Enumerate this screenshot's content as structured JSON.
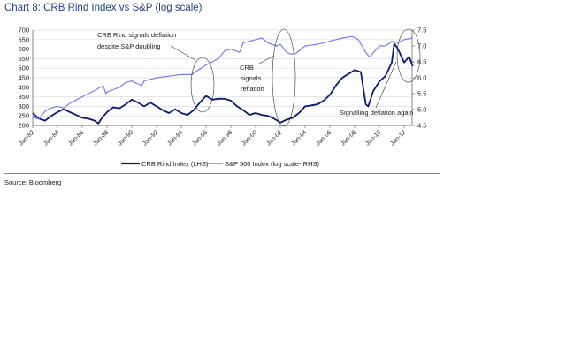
{
  "chart_data": {
    "type": "line",
    "title": "Chart 8: CRB Rind Index vs S&P (log scale)",
    "source": "Source: Bloomberg",
    "x_ticks": [
      "Jan-82",
      "Jan-84",
      "Jan-86",
      "Jan-88",
      "Jan-90",
      "Jan-92",
      "Jan-94",
      "Jan-96",
      "Jan-98",
      "Jan-00",
      "Jan-02",
      "Jan-04",
      "Jan-06",
      "Jan-08",
      "Jan-10",
      "Jan-12"
    ],
    "x_range": [
      1982,
      2012.7
    ],
    "y_left": {
      "range": [
        200,
        700
      ],
      "ticks": [
        200,
        250,
        300,
        350,
        400,
        450,
        500,
        550,
        600,
        650,
        700
      ]
    },
    "y_right": {
      "range": [
        4.5,
        7.5
      ],
      "ticks": [
        "4.5",
        "5.0",
        "5.5",
        "6.0",
        "6.5",
        "7.0",
        "7.5"
      ]
    },
    "grid": true,
    "legend_position": "bottom",
    "series": [
      {
        "name": "CRB Rind Index  (LHS)",
        "axis": "left",
        "color": "#0d1a78",
        "x": [
          1982,
          1982.5,
          1983,
          1983.5,
          1984,
          1984.5,
          1985,
          1985.5,
          1986,
          1986.5,
          1987,
          1987.3,
          1987.6,
          1988,
          1988.5,
          1989,
          1989.5,
          1990,
          1990.5,
          1991,
          1991.5,
          1992,
          1992.5,
          1993,
          1993.5,
          1994,
          1994.5,
          1995,
          1995.5,
          1996,
          1996.5,
          1997,
          1997.5,
          1998,
          1998.5,
          1999,
          1999.5,
          2000,
          2000.5,
          2001,
          2001.5,
          2002,
          2002.5,
          2003,
          2003.5,
          2004,
          2004.5,
          2005,
          2005.5,
          2006,
          2006.5,
          2007,
          2007.5,
          2008,
          2008.5,
          2008.9,
          2009.1,
          2009.5,
          2010,
          2010.5,
          2011,
          2011.2,
          2011.5,
          2012,
          2012.4,
          2012.7
        ],
        "values": [
          265,
          235,
          225,
          250,
          270,
          285,
          270,
          255,
          240,
          235,
          225,
          210,
          240,
          270,
          295,
          290,
          310,
          335,
          320,
          300,
          320,
          300,
          280,
          265,
          285,
          265,
          255,
          280,
          320,
          355,
          335,
          340,
          340,
          330,
          300,
          280,
          255,
          265,
          255,
          250,
          235,
          215,
          230,
          240,
          265,
          300,
          305,
          310,
          330,
          360,
          410,
          450,
          470,
          490,
          480,
          310,
          300,
          380,
          430,
          460,
          530,
          630,
          600,
          530,
          560,
          510
        ]
      },
      {
        "name": "S&P 500 Index  (log scale- RHS)",
        "axis": "right",
        "color": "#7b7bf5",
        "x": [
          1982,
          1982.5,
          1983,
          1983.5,
          1984,
          1984.5,
          1985,
          1985.5,
          1986,
          1986.5,
          1987,
          1987.7,
          1987.9,
          1988,
          1989,
          1989.5,
          1990,
          1990.8,
          1991,
          1991.5,
          1992,
          1993,
          1994,
          1994.9,
          1995,
          1996,
          1997,
          1997.5,
          1998,
          1998.7,
          1999,
          2000,
          2000.5,
          2001,
          2001.7,
          2002,
          2002.5,
          2002.8,
          2003.2,
          2004,
          2005,
          2006,
          2007,
          2007.8,
          2008.3,
          2008.9,
          2009.2,
          2010,
          2010.5,
          2011,
          2011.5,
          2012,
          2012.7
        ],
        "values": [
          4.75,
          4.7,
          4.95,
          5.05,
          5.1,
          5.05,
          5.2,
          5.3,
          5.4,
          5.5,
          5.6,
          5.75,
          5.5,
          5.55,
          5.7,
          5.85,
          5.9,
          5.75,
          5.9,
          5.95,
          6.0,
          6.05,
          6.1,
          6.1,
          6.15,
          6.4,
          6.6,
          6.85,
          6.9,
          6.8,
          7.1,
          7.2,
          7.25,
          7.1,
          7.0,
          7.05,
          6.8,
          6.75,
          6.75,
          7.0,
          7.05,
          7.15,
          7.25,
          7.3,
          7.2,
          6.8,
          6.65,
          7.0,
          7.0,
          7.15,
          7.1,
          7.2,
          7.25
        ]
      }
    ],
    "annotations": [
      "CRB Rind signals deflation",
      "despite S&P doubling",
      "CRB",
      "signals",
      "reflation",
      "Signalling deflation again"
    ]
  }
}
